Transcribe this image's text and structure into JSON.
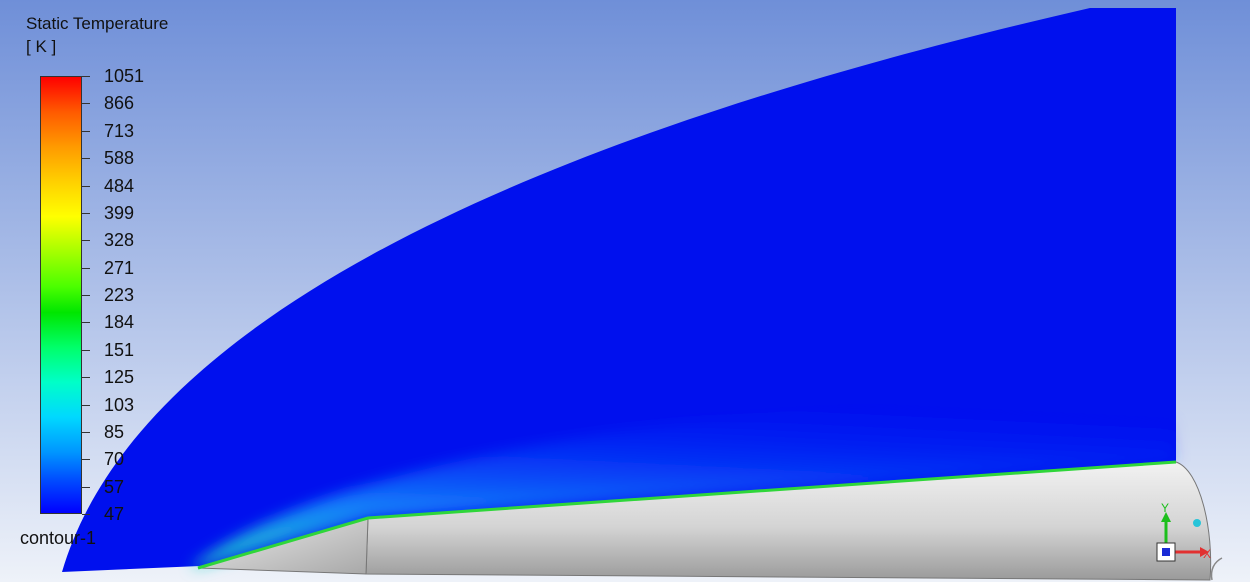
{
  "legend": {
    "title": "Static Temperature",
    "units": "[ K ]",
    "ticks": [
      "1051",
      "866",
      "713",
      "588",
      "484",
      "399",
      "328",
      "271",
      "223",
      "184",
      "151",
      "125",
      "103",
      "85",
      "70",
      "57",
      "47"
    ]
  },
  "contour_name": "contour-1",
  "colors": {
    "cold": "#0000ff",
    "hot": "#ff0000",
    "background_top": "#6f8fd8",
    "background_bottom": "#eef2f9",
    "body_surface": "#d9d9d9",
    "wall_layer": "#2fd63a"
  },
  "triad": {
    "x_label": "X",
    "y_label": "Y"
  }
}
